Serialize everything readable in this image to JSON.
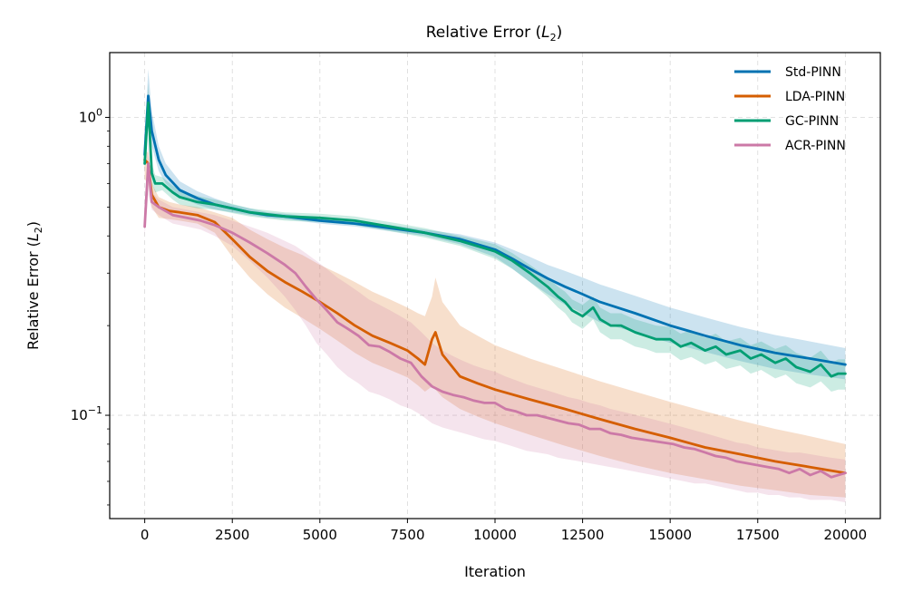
{
  "chart_data": {
    "type": "line",
    "title": "Relative Error (",
    "title_var": "L",
    "title_sub": "2",
    "title_end": ")",
    "xlabel": "Iteration",
    "ylabel": "Relative Error (",
    "ylabel_var": "L",
    "ylabel_sub": "2",
    "ylabel_end": ")",
    "yscale": "log",
    "xlim": [
      -1000,
      21000
    ],
    "ylim": [
      0.045,
      1.65
    ],
    "xticks": [
      0,
      2500,
      5000,
      7500,
      10000,
      12500,
      15000,
      17500,
      20000
    ],
    "xtick_labels": [
      "0",
      "2500",
      "5000",
      "7500",
      "10000",
      "12500",
      "15000",
      "17500",
      "20000"
    ],
    "yticks": [
      {
        "value": 1.0,
        "base": "10",
        "exp": "0"
      },
      {
        "value": 0.1,
        "base": "10",
        "exp": "−1"
      }
    ],
    "grid": true,
    "legend_position": "top-right",
    "series": [
      {
        "name": "Std-PINN",
        "color": "#0072b2",
        "x": [
          0,
          100,
          200,
          400,
          600,
          1000,
          1500,
          2000,
          2500,
          3000,
          3500,
          4000,
          5000,
          6000,
          7000,
          8000,
          9000,
          10000,
          10500,
          11000,
          11500,
          12000,
          12500,
          13000,
          14000,
          15000,
          16000,
          17000,
          18000,
          19000,
          20000
        ],
        "values": [
          0.75,
          1.18,
          0.9,
          0.72,
          0.64,
          0.57,
          0.535,
          0.51,
          0.495,
          0.48,
          0.47,
          0.465,
          0.45,
          0.44,
          0.425,
          0.41,
          0.39,
          0.36,
          0.335,
          0.31,
          0.288,
          0.27,
          0.255,
          0.24,
          0.22,
          0.2,
          0.185,
          0.172,
          0.162,
          0.155,
          0.148
        ],
        "band_lower": [
          0.7,
          0.95,
          0.8,
          0.66,
          0.6,
          0.54,
          0.51,
          0.49,
          0.48,
          0.47,
          0.46,
          0.455,
          0.44,
          0.43,
          0.415,
          0.4,
          0.375,
          0.34,
          0.31,
          0.28,
          0.255,
          0.235,
          0.22,
          0.205,
          0.19,
          0.175,
          0.163,
          0.152,
          0.143,
          0.137,
          0.132
        ],
        "band_upper": [
          0.85,
          1.45,
          1.05,
          0.8,
          0.7,
          0.61,
          0.565,
          0.535,
          0.51,
          0.495,
          0.48,
          0.475,
          0.46,
          0.45,
          0.435,
          0.42,
          0.405,
          0.38,
          0.36,
          0.34,
          0.32,
          0.305,
          0.29,
          0.275,
          0.252,
          0.23,
          0.213,
          0.198,
          0.186,
          0.177,
          0.168
        ]
      },
      {
        "name": "LDA-PINN",
        "color": "#d55e00",
        "x": [
          0,
          100,
          200,
          400,
          700,
          1000,
          1500,
          2000,
          2500,
          3000,
          3500,
          4000,
          4500,
          5000,
          5500,
          6000,
          6500,
          7000,
          7500,
          7800,
          8000,
          8200,
          8300,
          8500,
          9000,
          9500,
          10000,
          11000,
          12000,
          13000,
          14000,
          15000,
          16000,
          17000,
          18000,
          19000,
          20000
        ],
        "values": [
          0.72,
          0.7,
          0.55,
          0.5,
          0.485,
          0.48,
          0.47,
          0.445,
          0.39,
          0.34,
          0.305,
          0.28,
          0.26,
          0.24,
          0.22,
          0.2,
          0.185,
          0.175,
          0.165,
          0.155,
          0.148,
          0.18,
          0.19,
          0.16,
          0.135,
          0.128,
          0.122,
          0.113,
          0.105,
          0.097,
          0.09,
          0.084,
          0.078,
          0.074,
          0.07,
          0.067,
          0.064
        ],
        "band_lower": [
          0.62,
          0.6,
          0.5,
          0.46,
          0.455,
          0.45,
          0.44,
          0.41,
          0.34,
          0.29,
          0.255,
          0.23,
          0.212,
          0.195,
          0.178,
          0.162,
          0.15,
          0.142,
          0.134,
          0.126,
          0.12,
          0.125,
          0.122,
          0.115,
          0.105,
          0.099,
          0.094,
          0.086,
          0.079,
          0.073,
          0.068,
          0.064,
          0.061,
          0.058,
          0.056,
          0.054,
          0.053
        ],
        "band_upper": [
          0.78,
          0.76,
          0.6,
          0.54,
          0.52,
          0.51,
          0.5,
          0.48,
          0.46,
          0.42,
          0.39,
          0.365,
          0.345,
          0.32,
          0.3,
          0.28,
          0.26,
          0.245,
          0.23,
          0.22,
          0.215,
          0.25,
          0.29,
          0.24,
          0.2,
          0.185,
          0.172,
          0.155,
          0.142,
          0.13,
          0.12,
          0.111,
          0.103,
          0.096,
          0.09,
          0.085,
          0.08
        ]
      },
      {
        "name": "GC-PINN",
        "color": "#009e73",
        "x": [
          0,
          100,
          200,
          300,
          500,
          800,
          1000,
          1500,
          2000,
          3000,
          4000,
          5000,
          6000,
          7000,
          8000,
          9000,
          10000,
          10500,
          11000,
          11500,
          11800,
          12000,
          12200,
          12500,
          12800,
          13000,
          13300,
          13600,
          14000,
          14300,
          14600,
          15000,
          15300,
          15600,
          16000,
          16300,
          16600,
          17000,
          17300,
          17600,
          18000,
          18300,
          18600,
          19000,
          19300,
          19600,
          19800,
          20000
        ],
        "values": [
          0.7,
          1.12,
          0.65,
          0.6,
          0.6,
          0.56,
          0.54,
          0.52,
          0.51,
          0.48,
          0.465,
          0.46,
          0.45,
          0.43,
          0.41,
          0.385,
          0.355,
          0.33,
          0.3,
          0.27,
          0.25,
          0.24,
          0.225,
          0.215,
          0.23,
          0.21,
          0.2,
          0.2,
          0.19,
          0.185,
          0.18,
          0.18,
          0.17,
          0.175,
          0.165,
          0.17,
          0.16,
          0.165,
          0.155,
          0.16,
          0.15,
          0.155,
          0.145,
          0.14,
          0.148,
          0.135,
          0.138,
          0.138
        ],
        "band_lower": [
          0.66,
          0.95,
          0.6,
          0.56,
          0.57,
          0.53,
          0.51,
          0.495,
          0.49,
          0.465,
          0.45,
          0.445,
          0.435,
          0.415,
          0.395,
          0.37,
          0.335,
          0.31,
          0.28,
          0.25,
          0.23,
          0.22,
          0.205,
          0.195,
          0.21,
          0.19,
          0.18,
          0.18,
          0.17,
          0.167,
          0.162,
          0.162,
          0.153,
          0.157,
          0.148,
          0.152,
          0.143,
          0.147,
          0.138,
          0.142,
          0.133,
          0.137,
          0.128,
          0.124,
          0.13,
          0.12,
          0.122,
          0.122
        ],
        "band_upper": [
          0.75,
          1.3,
          0.7,
          0.64,
          0.63,
          0.59,
          0.57,
          0.545,
          0.53,
          0.495,
          0.48,
          0.475,
          0.465,
          0.445,
          0.425,
          0.4,
          0.375,
          0.35,
          0.32,
          0.29,
          0.27,
          0.26,
          0.245,
          0.235,
          0.25,
          0.23,
          0.22,
          0.22,
          0.21,
          0.205,
          0.2,
          0.198,
          0.188,
          0.193,
          0.182,
          0.188,
          0.177,
          0.182,
          0.172,
          0.177,
          0.167,
          0.172,
          0.162,
          0.156,
          0.165,
          0.15,
          0.154,
          0.154
        ]
      },
      {
        "name": "ACR-PINN",
        "color": "#cc79a7",
        "x": [
          0,
          100,
          200,
          400,
          800,
          1200,
          1600,
          2000,
          2500,
          3000,
          3500,
          4000,
          4300,
          4600,
          4900,
          5200,
          5500,
          5800,
          6100,
          6400,
          6700,
          7000,
          7300,
          7600,
          7900,
          8200,
          8500,
          8800,
          9100,
          9400,
          9700,
          10000,
          10300,
          10600,
          10900,
          11200,
          11500,
          11800,
          12100,
          12400,
          12700,
          13000,
          13300,
          13600,
          13900,
          14200,
          14500,
          14800,
          15100,
          15400,
          15700,
          16000,
          16300,
          16600,
          16900,
          17200,
          17500,
          17800,
          18100,
          18400,
          18700,
          19000,
          19300,
          19600,
          20000
        ],
        "values": [
          0.43,
          0.7,
          0.52,
          0.5,
          0.47,
          0.46,
          0.45,
          0.435,
          0.41,
          0.38,
          0.35,
          0.32,
          0.3,
          0.27,
          0.245,
          0.225,
          0.205,
          0.195,
          0.185,
          0.172,
          0.17,
          0.163,
          0.155,
          0.15,
          0.135,
          0.125,
          0.12,
          0.117,
          0.115,
          0.112,
          0.11,
          0.11,
          0.105,
          0.103,
          0.1,
          0.1,
          0.098,
          0.096,
          0.094,
          0.093,
          0.09,
          0.09,
          0.087,
          0.086,
          0.084,
          0.083,
          0.082,
          0.081,
          0.08,
          0.078,
          0.077,
          0.075,
          0.073,
          0.072,
          0.07,
          0.069,
          0.068,
          0.067,
          0.066,
          0.064,
          0.066,
          0.063,
          0.065,
          0.062,
          0.064
        ],
        "band_lower": [
          0.4,
          0.55,
          0.49,
          0.47,
          0.44,
          0.43,
          0.42,
          0.4,
          0.37,
          0.33,
          0.29,
          0.25,
          0.225,
          0.2,
          0.175,
          0.16,
          0.145,
          0.135,
          0.128,
          0.12,
          0.117,
          0.113,
          0.108,
          0.105,
          0.1,
          0.094,
          0.091,
          0.089,
          0.087,
          0.085,
          0.083,
          0.082,
          0.08,
          0.078,
          0.076,
          0.075,
          0.074,
          0.072,
          0.071,
          0.07,
          0.069,
          0.068,
          0.067,
          0.066,
          0.065,
          0.064,
          0.063,
          0.062,
          0.061,
          0.06,
          0.059,
          0.059,
          0.058,
          0.057,
          0.056,
          0.055,
          0.055,
          0.054,
          0.054,
          0.053,
          0.053,
          0.052,
          0.052,
          0.052,
          0.051
        ],
        "band_upper": [
          0.47,
          0.82,
          0.56,
          0.53,
          0.5,
          0.49,
          0.48,
          0.47,
          0.45,
          0.43,
          0.41,
          0.385,
          0.37,
          0.35,
          0.33,
          0.31,
          0.29,
          0.275,
          0.26,
          0.245,
          0.235,
          0.225,
          0.215,
          0.205,
          0.19,
          0.175,
          0.165,
          0.158,
          0.152,
          0.147,
          0.143,
          0.14,
          0.135,
          0.131,
          0.127,
          0.124,
          0.121,
          0.118,
          0.115,
          0.113,
          0.11,
          0.108,
          0.105,
          0.103,
          0.101,
          0.099,
          0.097,
          0.095,
          0.093,
          0.091,
          0.089,
          0.087,
          0.085,
          0.083,
          0.081,
          0.08,
          0.078,
          0.077,
          0.076,
          0.075,
          0.075,
          0.074,
          0.073,
          0.072,
          0.071
        ]
      }
    ]
  }
}
